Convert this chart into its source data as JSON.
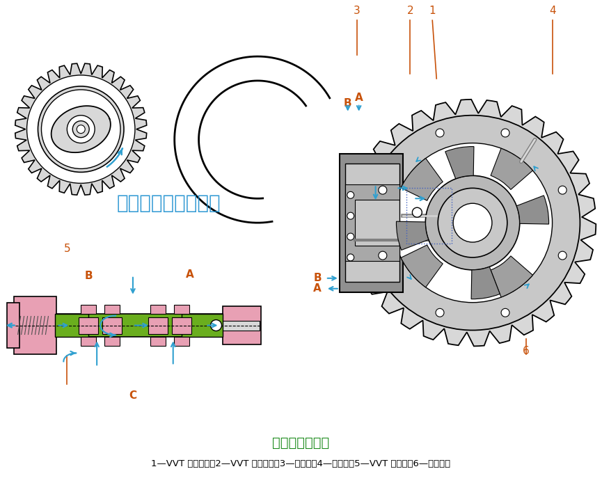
{
  "title_main": "凸轮轴延迟控制",
  "caption": "1—VVT 链轮定子；2—VVT 链轮转子；3—凸轮轴；4—锁止销；5—VVT 电磁阀；6—转子叶片",
  "watermark": "汽车维修技术与知识",
  "label_color_orange": "#C8520A",
  "arrow_color": "#30A0D0",
  "green_color": "#6AAE1E",
  "pink_color": "#E8A0B4",
  "light_gray": "#D8D8D8",
  "med_gray": "#B0B0B0",
  "dark_gray": "#808080",
  "bg_color": "#FFFFFF",
  "title_color": "#1A8A1A",
  "watermark_color": "#1E90D0",
  "black": "#000000",
  "white": "#FFFFFF"
}
